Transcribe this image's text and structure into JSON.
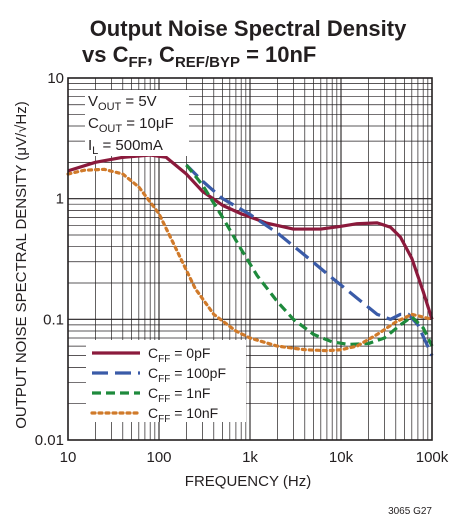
{
  "chart_data": {
    "type": "line",
    "title_parts": {
      "line1": "Output Noise Spectral Density",
      "vs": "vs C",
      "ff_sub": "FF",
      "sep": ", C",
      "ref_sub": "REF/BYP",
      "tail": " = 10nF"
    },
    "xlabel": "FREQUENCY (Hz)",
    "ylabel": "OUTPUT NOISE SPECTRAL DENSITY (μV/√Hz)",
    "x_scale": "log",
    "y_scale": "log",
    "xlim": [
      10,
      100000
    ],
    "ylim": [
      0.01,
      10
    ],
    "x_ticks": [
      {
        "value": 10,
        "label": "10"
      },
      {
        "value": 100,
        "label": "100"
      },
      {
        "value": 1000,
        "label": "1k"
      },
      {
        "value": 10000,
        "label": "10k"
      },
      {
        "value": 100000,
        "label": "100k"
      }
    ],
    "y_ticks": [
      {
        "value": 0.01,
        "label": "0.01"
      },
      {
        "value": 0.1,
        "label": "0.1"
      },
      {
        "value": 1,
        "label": "1"
      },
      {
        "value": 10,
        "label": "10"
      }
    ],
    "grid": true,
    "legend_position": "bottom-left",
    "conditions": [
      {
        "main": "V",
        "sub": "OUT",
        "rest": " = 5V"
      },
      {
        "main": "C",
        "sub": "OUT",
        "rest": " = 10μF"
      },
      {
        "main": "I",
        "sub": "L",
        "rest": " = 500mA"
      }
    ],
    "series": [
      {
        "name": "C_FF = 0pF",
        "label_main": "C",
        "label_sub": "FF",
        "label_rest": " = 0pF",
        "color": "#8b1a3c",
        "dash": "solid",
        "x": [
          10,
          20,
          40,
          80,
          120,
          200,
          300,
          500,
          800,
          1500,
          3000,
          6000,
          10000,
          15000,
          25000,
          35000,
          45000,
          60000,
          80000,
          100000
        ],
        "y": [
          1.7,
          2.0,
          2.2,
          2.3,
          2.2,
          1.6,
          1.15,
          0.88,
          0.75,
          0.63,
          0.56,
          0.56,
          0.59,
          0.62,
          0.63,
          0.58,
          0.48,
          0.32,
          0.17,
          0.1
        ]
      },
      {
        "name": "C_FF = 100pF",
        "label_main": "C",
        "label_sub": "FF",
        "label_rest": " = 100pF",
        "color": "#3a5ba8",
        "dash": "long",
        "x": [
          200,
          300,
          500,
          1000,
          2000,
          4000,
          8000,
          15000,
          25000,
          35000,
          45000,
          55000,
          70000,
          100000
        ],
        "y": [
          1.9,
          1.4,
          1.0,
          0.74,
          0.52,
          0.34,
          0.22,
          0.15,
          0.11,
          0.1,
          0.11,
          0.11,
          0.09,
          0.05
        ]
      },
      {
        "name": "C_FF = 1nF",
        "label_main": "C",
        "label_sub": "FF",
        "label_rest": " = 1nF",
        "color": "#1e8a3c",
        "dash": "medium",
        "x": [
          200,
          300,
          500,
          800,
          1200,
          2000,
          3000,
          5000,
          8000,
          12000,
          20000,
          30000,
          45000,
          60000,
          80000,
          100000
        ],
        "y": [
          1.9,
          1.3,
          0.7,
          0.38,
          0.23,
          0.14,
          0.1,
          0.075,
          0.065,
          0.062,
          0.063,
          0.07,
          0.09,
          0.105,
          0.085,
          0.06
        ]
      },
      {
        "name": "C_FF = 10nF",
        "label_main": "C",
        "label_sub": "FF",
        "label_rest": " = 10nF",
        "color": "#d07a2a",
        "dash": "dotted",
        "x": [
          10,
          15,
          25,
          40,
          60,
          100,
          150,
          250,
          400,
          700,
          1000,
          2000,
          4000,
          7000,
          10000,
          15000,
          25000,
          40000,
          60000,
          100000
        ],
        "y": [
          1.6,
          1.72,
          1.75,
          1.6,
          1.25,
          0.75,
          0.4,
          0.18,
          0.11,
          0.08,
          0.07,
          0.06,
          0.056,
          0.055,
          0.056,
          0.06,
          0.075,
          0.095,
          0.11,
          0.1
        ]
      }
    ],
    "code": "3065 G27"
  }
}
